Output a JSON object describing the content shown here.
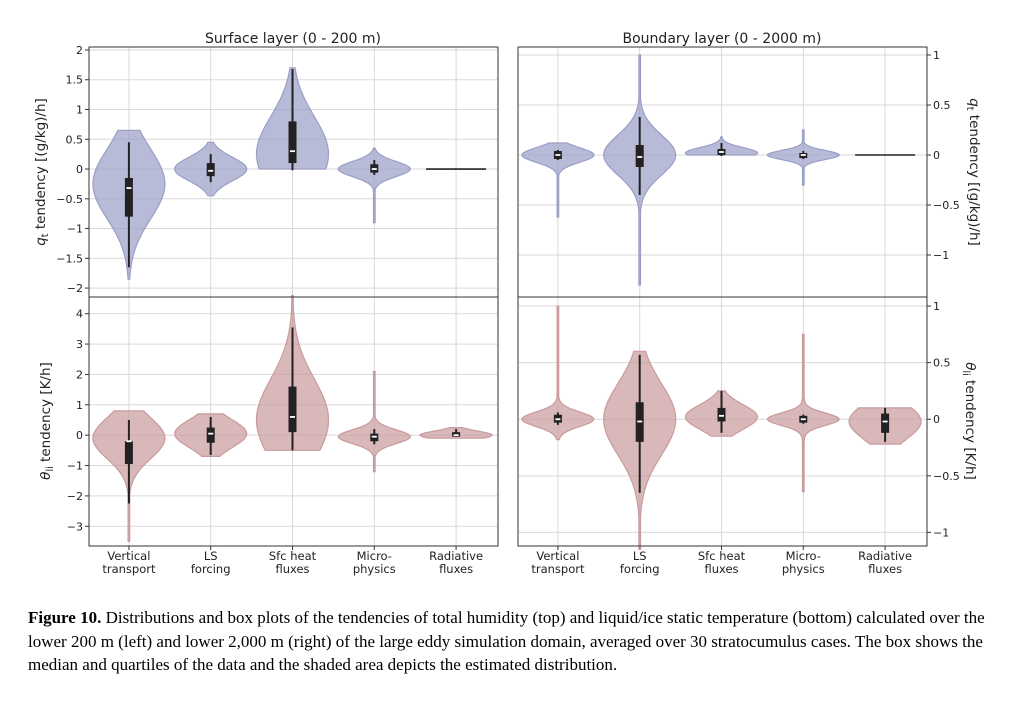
{
  "figure": {
    "titles": [
      "Surface layer (0 - 200 m)",
      "Boundary layer (0 - 2000 m)"
    ],
    "ylabels": {
      "top": "q_t tendency [(g/kg)/h]",
      "bottom": "θ_li tendency [K/h]"
    },
    "categories": [
      [
        "Vertical",
        "transport"
      ],
      [
        "LS",
        "forcing"
      ],
      [
        "Sfc heat",
        "fluxes"
      ],
      [
        "Micro-",
        "physics"
      ],
      [
        "Radiative",
        "fluxes"
      ]
    ],
    "colors": {
      "qt": "#9a9ec6",
      "theta": "#c99a9c",
      "box": "#222222"
    }
  },
  "caption": {
    "label": "Figure 10.",
    "text": "Distributions and box plots of the tendencies of total humidity (top) and liquid/ice static temperature (bottom) calculated over the lower 200 m (left) and lower 2,000 m (right) of the large eddy simulation domain, averaged over 30 stratocumulus cases. The box shows the median and quartiles of the data and the shaded area depicts the estimated distribution."
  },
  "chart_data": [
    {
      "type": "violin",
      "panel": "surface-qt",
      "title": "Surface layer (0 - 200 m)",
      "ylabel": "q_t tendency [(g/kg)/h]",
      "ylim": [
        -2.15,
        2.05
      ],
      "yticks": [
        -2.0,
        -1.5,
        -1.0,
        -0.5,
        0.0,
        0.5,
        1.0,
        1.5,
        2.0
      ],
      "series": [
        {
          "category": "Vertical transport",
          "min": -1.85,
          "max": 0.65,
          "wmin": -1.65,
          "wmax": 0.45,
          "q1": -0.8,
          "median": -0.32,
          "q3": -0.15,
          "peak": -0.25
        },
        {
          "category": "LS forcing",
          "min": -0.45,
          "max": 0.45,
          "wmin": -0.22,
          "wmax": 0.25,
          "q1": -0.12,
          "median": -0.03,
          "q3": 0.1,
          "peak": 0.0
        },
        {
          "category": "Sfc heat fluxes",
          "min": 0.0,
          "max": 1.7,
          "wmin": -0.02,
          "wmax": 1.68,
          "q1": 0.1,
          "median": 0.3,
          "q3": 0.8,
          "peak": 0.25
        },
        {
          "category": "Micro- physics",
          "min": -0.9,
          "max": 0.35,
          "wmin": -0.1,
          "wmax": 0.15,
          "q1": -0.06,
          "median": 0.0,
          "q3": 0.08,
          "peak": 0.0
        },
        {
          "category": "Radiative fluxes",
          "min": 0.0,
          "max": 0.0,
          "wmin": 0.0,
          "wmax": 0.0,
          "q1": 0.0,
          "median": 0.0,
          "q3": 0.0,
          "peak": 0.0
        }
      ]
    },
    {
      "type": "violin",
      "panel": "boundary-qt",
      "title": "Boundary layer (0 - 2000 m)",
      "ylabel": "q_t tendency [(g/kg)/h]",
      "ylim": [
        -1.42,
        1.08
      ],
      "yticks": [
        -1.0,
        -0.5,
        0.0,
        0.5,
        1.0
      ],
      "series": [
        {
          "category": "Vertical transport",
          "min": -0.62,
          "max": 0.12,
          "wmin": -0.05,
          "wmax": 0.05,
          "q1": -0.04,
          "median": 0.0,
          "q3": 0.04,
          "peak": 0.0
        },
        {
          "category": "LS forcing",
          "min": -1.3,
          "max": 1.0,
          "wmin": -0.4,
          "wmax": 0.38,
          "q1": -0.12,
          "median": -0.02,
          "q3": 0.1,
          "peak": 0.0
        },
        {
          "category": "Sfc heat fluxes",
          "min": 0.0,
          "max": 0.18,
          "wmin": -0.01,
          "wmax": 0.12,
          "q1": 0.0,
          "median": 0.03,
          "q3": 0.06,
          "peak": 0.02
        },
        {
          "category": "Micro- physics",
          "min": -0.3,
          "max": 0.25,
          "wmin": -0.04,
          "wmax": 0.04,
          "q1": -0.03,
          "median": 0.0,
          "q3": 0.02,
          "peak": 0.0
        },
        {
          "category": "Radiative fluxes",
          "min": 0.0,
          "max": 0.0,
          "wmin": 0.0,
          "wmax": 0.0,
          "q1": 0.0,
          "median": 0.0,
          "q3": 0.0,
          "peak": 0.0
        }
      ]
    },
    {
      "type": "violin",
      "panel": "surface-theta",
      "ylabel": "θ_li tendency [K/h]",
      "ylim": [
        -3.65,
        4.55
      ],
      "yticks": [
        -3,
        -2,
        -1,
        0,
        1,
        2,
        3,
        4
      ],
      "series": [
        {
          "category": "Vertical transport",
          "min": -3.5,
          "max": 0.8,
          "wmin": -2.25,
          "wmax": 0.5,
          "q1": -0.95,
          "median": -0.2,
          "q3": -0.2,
          "peak": -0.1
        },
        {
          "category": "LS forcing",
          "min": -0.7,
          "max": 0.7,
          "wmin": -0.65,
          "wmax": 0.6,
          "q1": -0.25,
          "median": 0.05,
          "q3": 0.25,
          "peak": 0.05
        },
        {
          "category": "Sfc heat fluxes",
          "min": -0.5,
          "max": 4.6,
          "wmin": -0.5,
          "wmax": 3.55,
          "q1": 0.1,
          "median": 0.6,
          "q3": 1.6,
          "peak": 0.5
        },
        {
          "category": "Micro- physics",
          "min": -1.2,
          "max": 2.1,
          "wmin": -0.3,
          "wmax": 0.2,
          "q1": -0.2,
          "median": -0.05,
          "q3": 0.05,
          "peak": -0.05
        },
        {
          "category": "Radiative fluxes",
          "min": -0.1,
          "max": 0.25,
          "wmin": -0.05,
          "wmax": 0.2,
          "q1": -0.05,
          "median": 0.0,
          "q3": 0.1,
          "peak": 0.0
        }
      ]
    },
    {
      "type": "violin",
      "panel": "boundary-theta",
      "ylabel": "θ_li tendency [K/h]",
      "ylim": [
        -1.12,
        1.08
      ],
      "yticks": [
        -1.0,
        -0.5,
        0.0,
        0.5,
        1.0
      ],
      "series": [
        {
          "category": "Vertical transport",
          "min": -0.18,
          "max": 1.0,
          "wmin": -0.05,
          "wmax": 0.06,
          "q1": -0.03,
          "median": 0.0,
          "q3": 0.04,
          "peak": 0.0
        },
        {
          "category": "LS forcing",
          "min": -1.15,
          "max": 0.6,
          "wmin": -0.65,
          "wmax": 0.57,
          "q1": -0.2,
          "median": -0.02,
          "q3": 0.15,
          "peak": 0.0
        },
        {
          "category": "Sfc heat fluxes",
          "min": -0.15,
          "max": 0.25,
          "wmin": -0.12,
          "wmax": 0.25,
          "q1": -0.02,
          "median": 0.03,
          "q3": 0.1,
          "peak": 0.02
        },
        {
          "category": "Micro- physics",
          "min": -0.64,
          "max": 0.75,
          "wmin": -0.04,
          "wmax": 0.04,
          "q1": -0.03,
          "median": 0.0,
          "q3": 0.03,
          "peak": 0.0
        },
        {
          "category": "Radiative fluxes",
          "min": -0.22,
          "max": 0.1,
          "wmin": -0.2,
          "wmax": 0.1,
          "q1": -0.12,
          "median": -0.02,
          "q3": 0.05,
          "peak": -0.02
        }
      ]
    }
  ]
}
